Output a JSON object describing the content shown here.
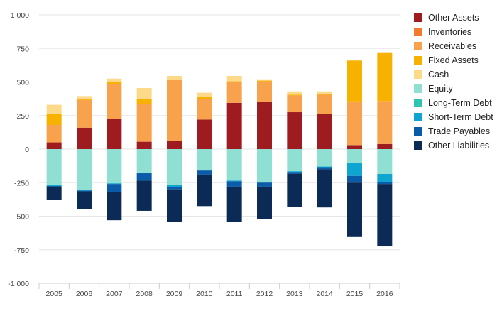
{
  "chart_data": {
    "type": "bar",
    "stacked": true,
    "categories": [
      "2005",
      "2006",
      "2007",
      "2008",
      "2009",
      "2010",
      "2011",
      "2012",
      "2013",
      "2014",
      "2015",
      "2016"
    ],
    "ylim": [
      -1000,
      1000
    ],
    "yticks": [
      1000,
      750,
      500,
      250,
      0,
      -250,
      -500,
      -750,
      -1000
    ],
    "ytick_labels": [
      "1 000",
      "750",
      "500",
      "250",
      "0",
      "-250",
      "-500",
      "-750",
      "-1 000"
    ],
    "grid": true,
    "legend_position": "right",
    "series": [
      {
        "name": "Other Assets",
        "color": "#9e1b20",
        "values": [
          50,
          160,
          225,
          55,
          60,
          220,
          345,
          350,
          275,
          260,
          30,
          38
        ]
      },
      {
        "name": "Inventories",
        "color": "#f47a2f",
        "values": [
          0,
          0,
          0,
          0,
          0,
          0,
          0,
          0,
          0,
          0,
          0,
          0
        ]
      },
      {
        "name": "Receivables",
        "color": "#f9a24e",
        "values": [
          130,
          205,
          260,
          280,
          455,
          155,
          155,
          155,
          125,
          145,
          325,
          320
        ]
      },
      {
        "name": "Fixed Assets",
        "color": "#f7b200",
        "values": [
          80,
          5,
          15,
          40,
          5,
          15,
          5,
          5,
          5,
          5,
          305,
          360
        ]
      },
      {
        "name": "Cash",
        "color": "#fdd98a",
        "values": [
          70,
          25,
          25,
          80,
          25,
          30,
          40,
          10,
          25,
          20,
          0,
          5
        ]
      },
      {
        "name": "Equity",
        "color": "#8fdfd2",
        "values": [
          -270,
          -305,
          -255,
          -175,
          -265,
          -155,
          -235,
          -245,
          -165,
          -130,
          -105,
          -185
        ]
      },
      {
        "name": "Long-Term Debt",
        "color": "#2ec4b0",
        "values": [
          0,
          0,
          0,
          0,
          0,
          0,
          0,
          0,
          0,
          0,
          0,
          0
        ]
      },
      {
        "name": "Short-Term Debt",
        "color": "#0ea5d0",
        "values": [
          -5,
          -5,
          -5,
          -5,
          -20,
          -5,
          -5,
          -5,
          -5,
          -5,
          -95,
          -60
        ]
      },
      {
        "name": "Trade Payables",
        "color": "#0a5ca8",
        "values": [
          -10,
          -5,
          -60,
          -55,
          -15,
          -30,
          -40,
          -30,
          -15,
          -15,
          -50,
          -15
        ]
      },
      {
        "name": "Other Liabilities",
        "color": "#0b2a56",
        "values": [
          -95,
          -130,
          -210,
          -225,
          -245,
          -235,
          -260,
          -240,
          -245,
          -285,
          -405,
          -465
        ]
      }
    ]
  }
}
